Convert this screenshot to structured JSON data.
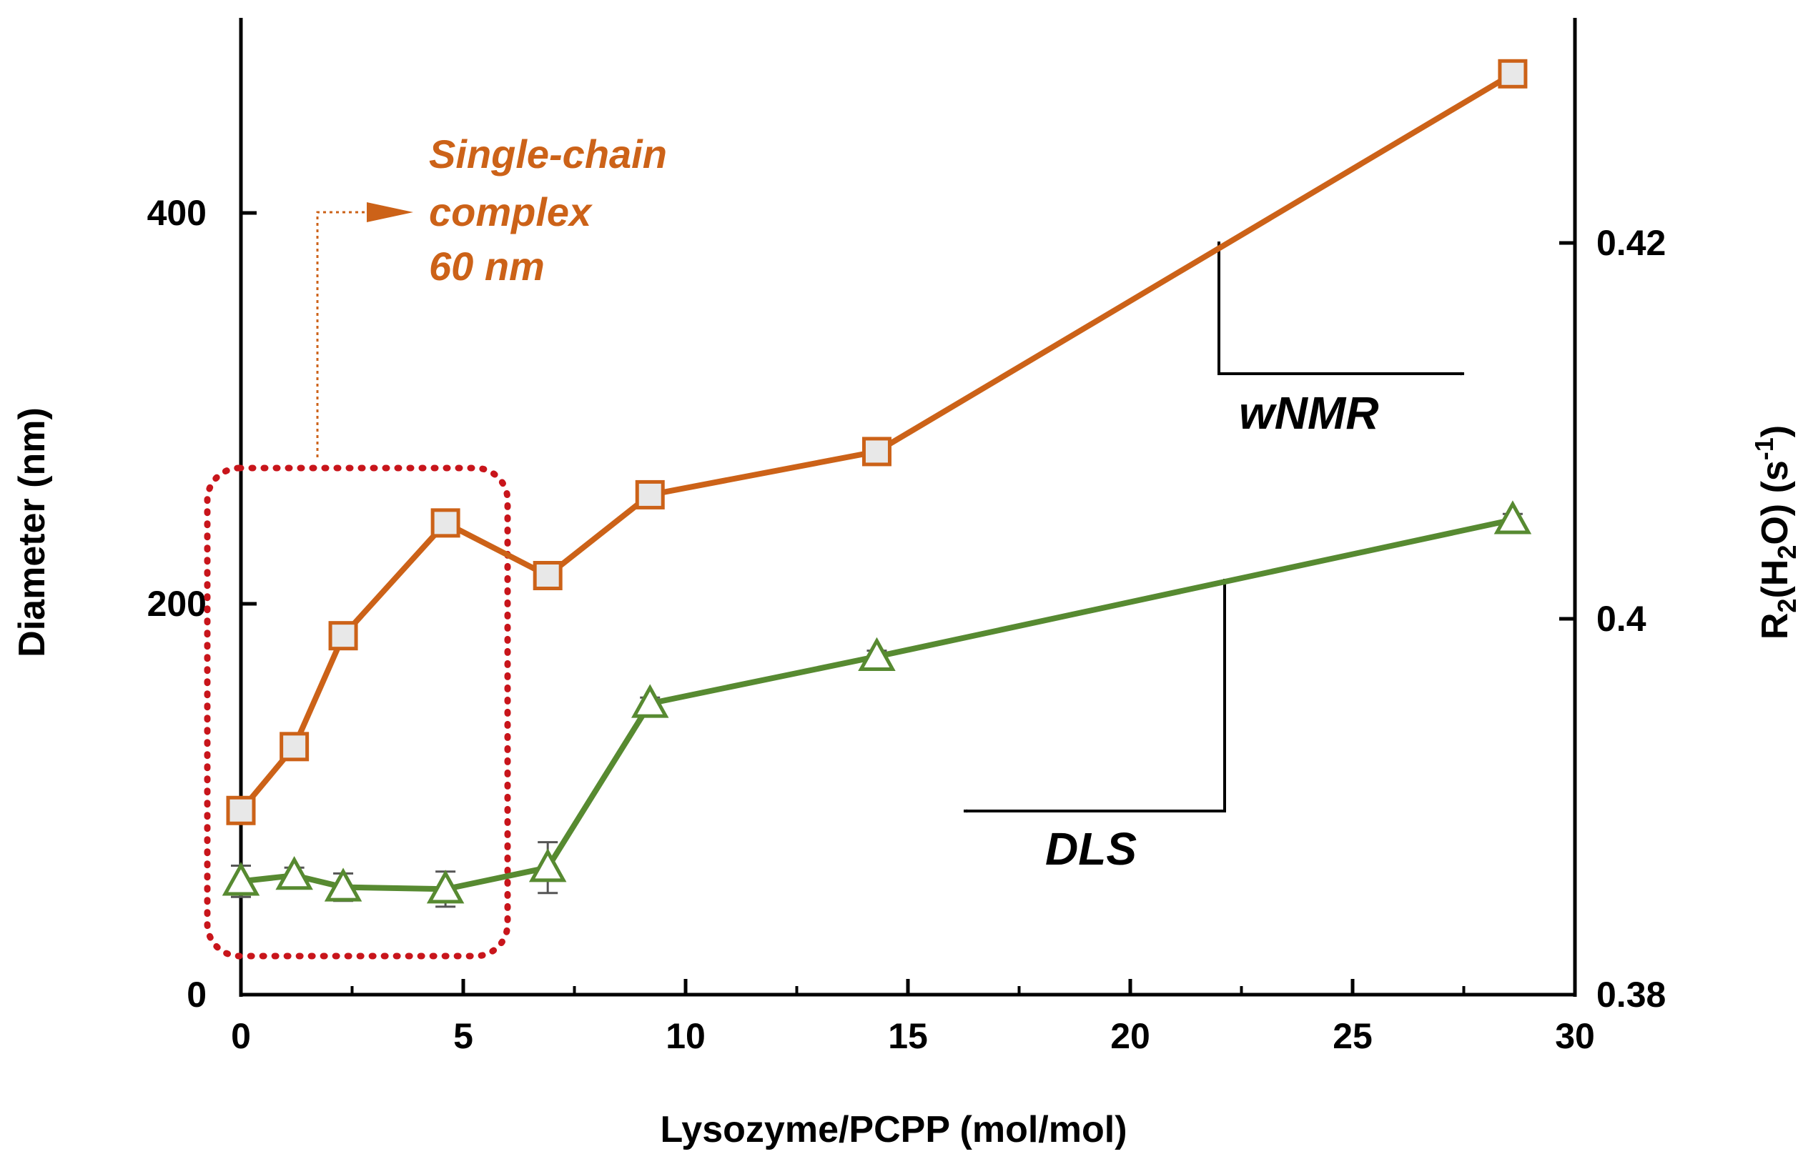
{
  "chart_data": {
    "type": "line",
    "xlabel": "Lysozyme/PCPP (mol/mol)",
    "ylabel_left": "Diameter (nm)",
    "ylabel_right": {
      "base": "R",
      "sub1": "2",
      "mid": "(H",
      "sub2": "2",
      "tail": "O) (s",
      "sup": "-1",
      "end": ")"
    },
    "xlim": [
      0,
      30
    ],
    "ylim_left": [
      0,
      500
    ],
    "ylim_right": [
      0.38,
      0.43
    ],
    "x_ticks": [
      0,
      5,
      10,
      15,
      20,
      25,
      30
    ],
    "x_tick_labels": [
      "0",
      "5",
      "10",
      "15",
      "20",
      "25",
      "30"
    ],
    "y_left_ticks": [
      0,
      200,
      400
    ],
    "y_left_tick_labels": [
      "0",
      "200",
      "400"
    ],
    "y_right_ticks": [
      0.38,
      0.4,
      0.42
    ],
    "y_right_tick_labels": [
      "0.38",
      "0.4",
      "0.42"
    ],
    "grid": false,
    "series": [
      {
        "name": "wNMR",
        "axis": "right",
        "marker": "square",
        "color": "#cc6218",
        "marker_fill": "#e8e8e8",
        "x": [
          0,
          1.2,
          2.3,
          4.6,
          6.9,
          9.2,
          14.3,
          28.6
        ],
        "y": [
          0.3898,
          0.3932,
          0.3991,
          0.4051,
          0.4023,
          0.4066,
          0.4089,
          0.429
        ]
      },
      {
        "name": "DLS",
        "axis": "left",
        "marker": "triangle",
        "color": "#578a31",
        "marker_fill": "#ffffff",
        "x": [
          0,
          1.2,
          2.3,
          4.6,
          6.9,
          9.2,
          14.3,
          28.6
        ],
        "y": [
          58,
          61,
          55,
          54,
          65,
          149,
          173,
          243
        ],
        "yerr": [
          8,
          4,
          7,
          9,
          13,
          3,
          3,
          3
        ]
      }
    ],
    "annotations": {
      "single_chain": [
        "Single-chain",
        "complex",
        "60 nm"
      ],
      "wnmr_label": "wNMR",
      "dls_label": "DLS"
    },
    "colors": {
      "axes": "#000000",
      "highlight_box": "#c8151b",
      "annotation_orange": "#cc6218",
      "error_bar": "#555555"
    }
  }
}
